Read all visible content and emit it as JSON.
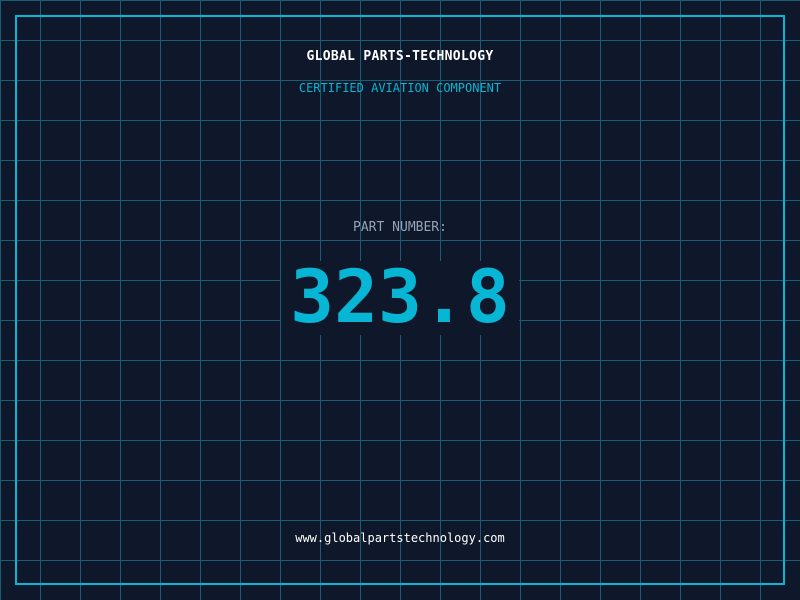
{
  "brand": {
    "title": "GLOBAL PARTS-TECHNOLOGY",
    "subtitle": "CERTIFIED AVIATION COMPONENT"
  },
  "part": {
    "label": "PART NUMBER:",
    "value": "323.8"
  },
  "footer": {
    "url": "www.globalpartstechnology.com"
  },
  "colors": {
    "background": "#0f172a",
    "accent": "#06b6d4",
    "grid": "#155e75",
    "label": "#94a3b8"
  }
}
